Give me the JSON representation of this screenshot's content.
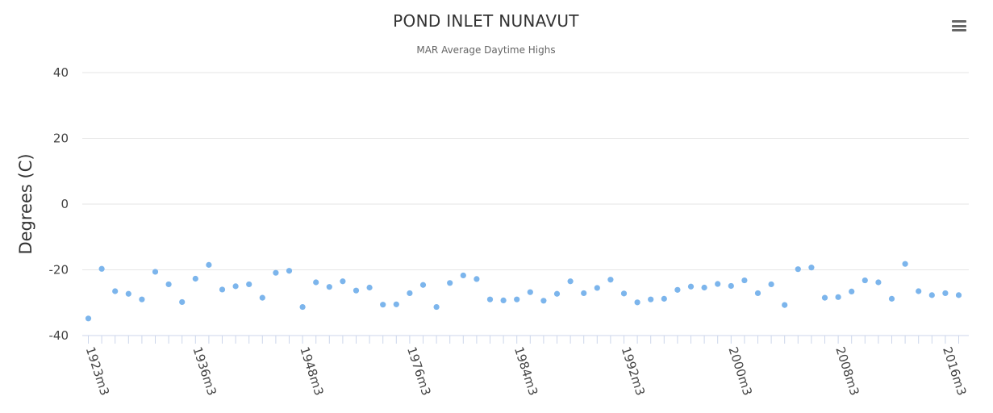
{
  "chart_data": {
    "type": "scatter",
    "title": "POND INLET NUNAVUT",
    "subtitle": "MAR Average Daytime Highs",
    "ylabel": "Degrees (C)",
    "xlabel": "",
    "ylim": [
      -40,
      40
    ],
    "y_ticks": [
      40,
      20,
      0,
      -20,
      -40
    ],
    "grid": true,
    "legend": "none",
    "color": "#7cb5ec",
    "x_tick_labels": [
      "1923m3",
      "1936m3",
      "1948m3",
      "1976m3",
      "1984m3",
      "1992m3",
      "2000m3",
      "2008m3",
      "2016m3"
    ],
    "series": [
      {
        "values": [
          -34.8,
          -19.7,
          -26.5,
          -27.3,
          -29.0,
          -20.6,
          -24.4,
          -29.8,
          -22.7,
          -18.5,
          -26.0,
          -25.0,
          -24.4,
          -28.5,
          -20.9,
          -20.3,
          -31.3,
          -23.8,
          -25.2,
          -23.5,
          -26.3,
          -25.4,
          -30.6,
          -30.5,
          -27.1,
          -24.6,
          -31.3,
          -24.0,
          -21.7,
          -22.8,
          -29.0,
          -29.3,
          -29.0,
          -26.8,
          -29.4,
          -27.3,
          -23.5,
          -27.1,
          -25.5,
          -23.0,
          -27.2,
          -29.9,
          -29.0,
          -28.8,
          -26.1,
          -25.1,
          -25.4,
          -24.3,
          -24.9,
          -23.2,
          -27.1,
          -24.4,
          -30.7,
          -19.8,
          -19.3,
          -28.5,
          -28.3,
          -26.6,
          -23.2,
          -23.8,
          -28.8,
          -18.2,
          -26.5,
          -27.7,
          -27.1,
          -27.7
        ]
      }
    ]
  }
}
